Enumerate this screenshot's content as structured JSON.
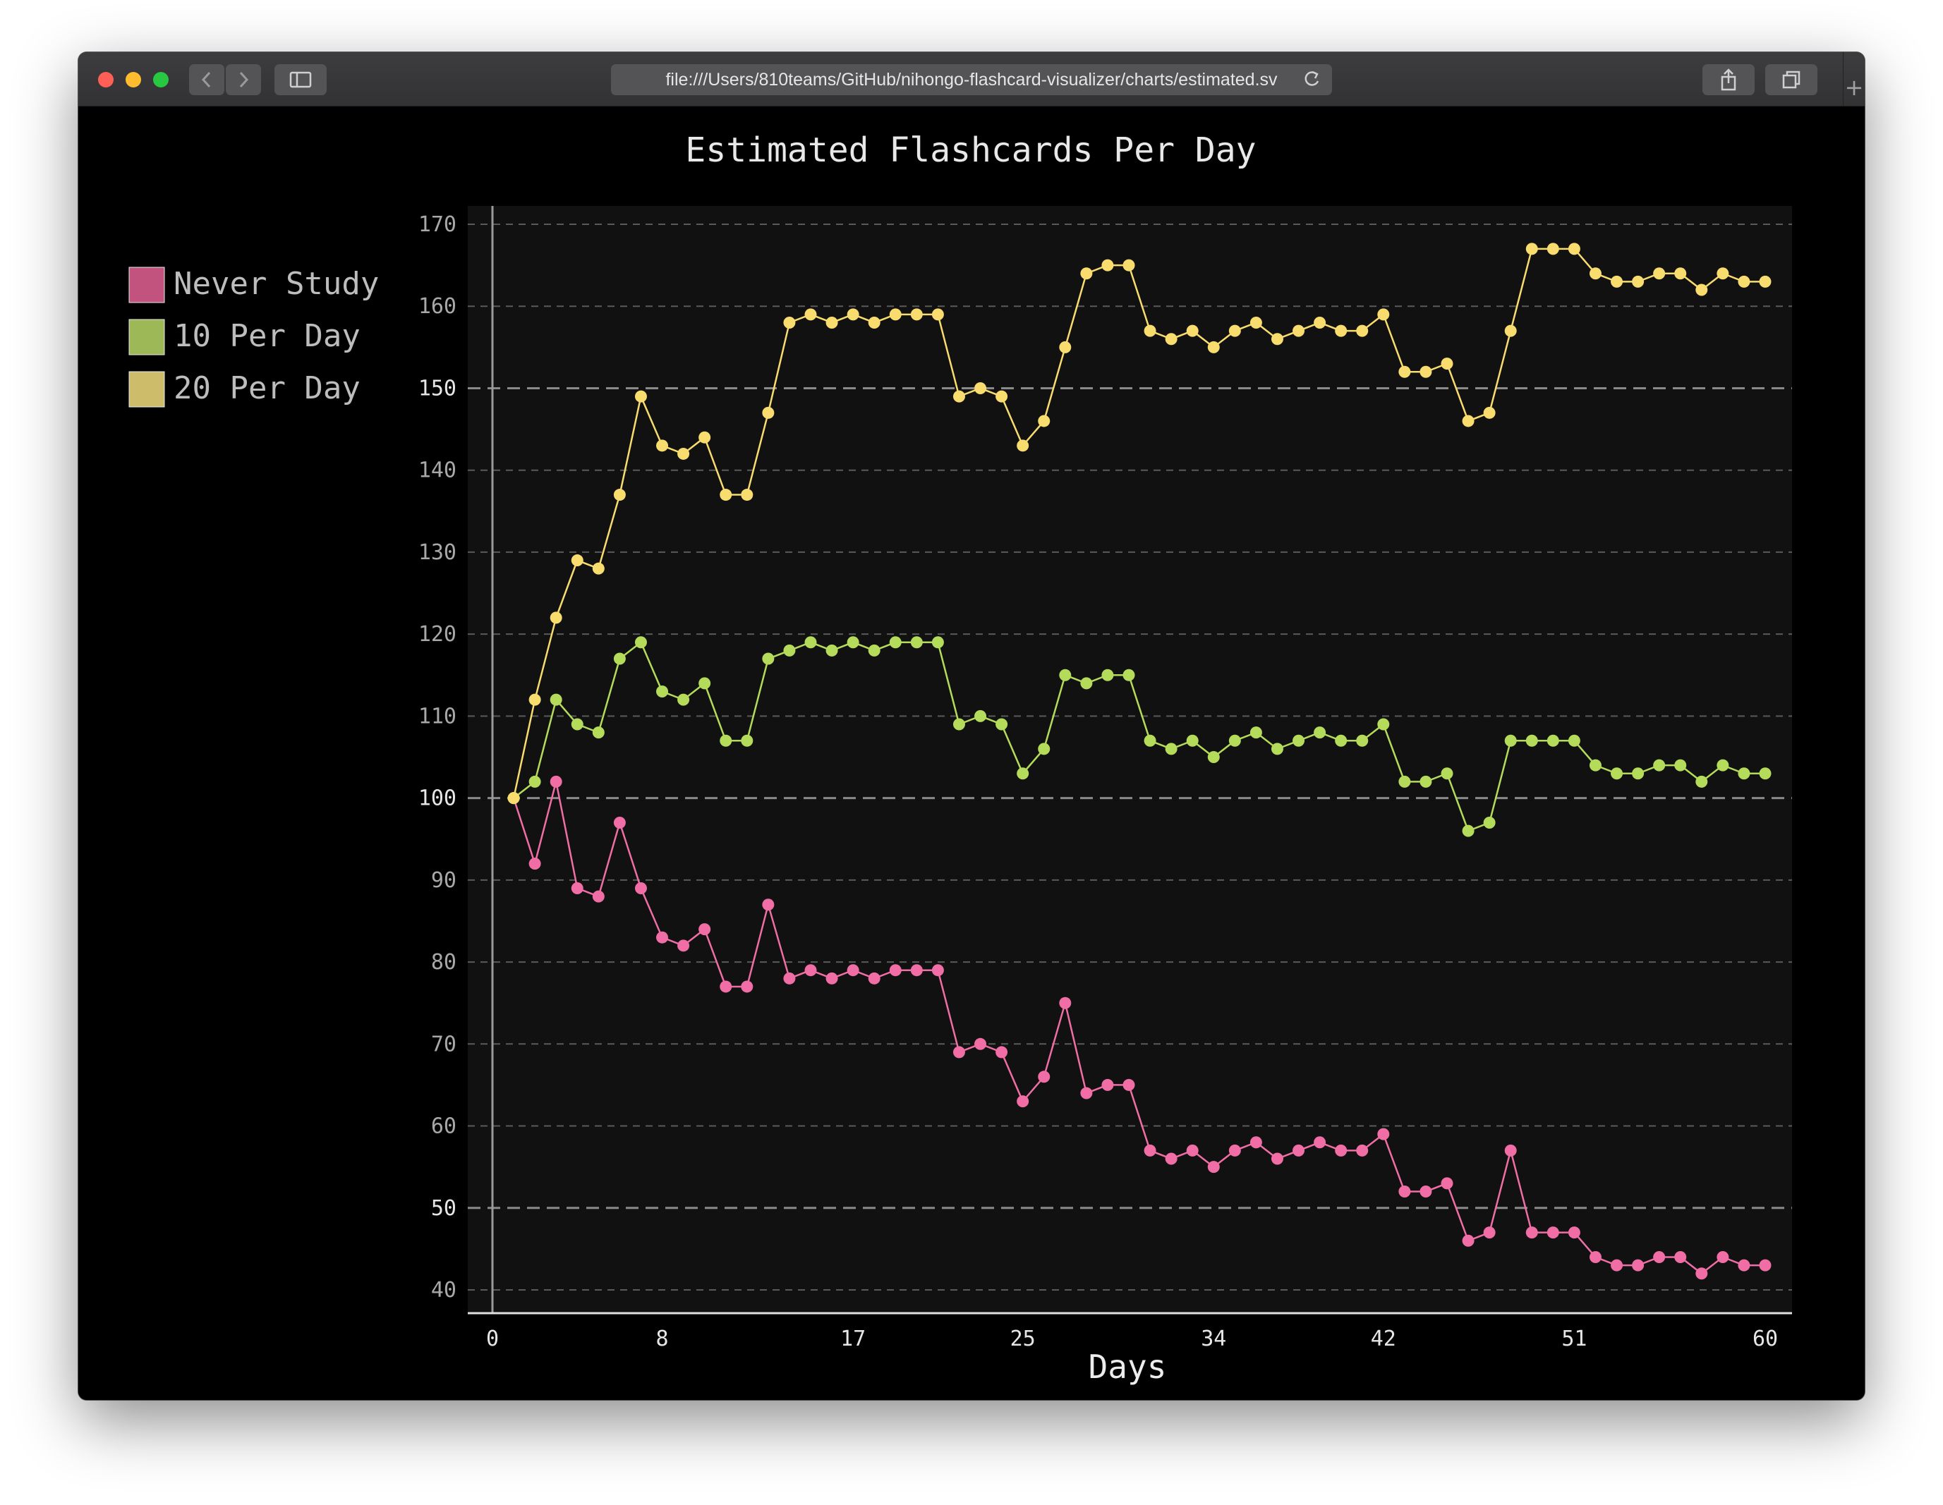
{
  "browser": {
    "url": "file:///Users/810teams/GitHub/nihongo-flashcard-visualizer/charts/estimated.sv",
    "back_icon": "chevron-left-icon",
    "forward_icon": "chevron-right-icon",
    "sidebar_icon": "sidebar-icon",
    "share_icon": "share-icon",
    "tabs_icon": "tabs-icon",
    "reload_icon": "reload-icon",
    "new_tab_icon": "plus-icon",
    "new_tab_glyph": "+"
  },
  "chart_data": {
    "type": "line",
    "title": "Estimated Flashcards Per Day",
    "xlabel": "Days",
    "ylabel": "",
    "xlim": [
      0,
      60
    ],
    "ylim": [
      40,
      170
    ],
    "x_ticks": [
      0,
      8,
      17,
      25,
      34,
      42,
      51,
      60
    ],
    "y_ticks": [
      40,
      50,
      60,
      70,
      80,
      90,
      100,
      110,
      120,
      130,
      140,
      150,
      160,
      170
    ],
    "major_y_ticks": [
      50,
      100,
      150
    ],
    "grid": "horizontal dashed",
    "legend_position": "left",
    "background": "#111111",
    "x": [
      1,
      2,
      3,
      4,
      5,
      6,
      7,
      8,
      9,
      10,
      11,
      12,
      13,
      14,
      15,
      16,
      17,
      18,
      19,
      20,
      21,
      22,
      23,
      24,
      25,
      26,
      27,
      28,
      29,
      30,
      31,
      32,
      33,
      34,
      35,
      36,
      37,
      38,
      39,
      40,
      41,
      42,
      43,
      44,
      45,
      46,
      47,
      48,
      49,
      50,
      51,
      52,
      53,
      54,
      55,
      56,
      57,
      58,
      59,
      60
    ],
    "series": [
      {
        "name": "Never Study",
        "color": "#f06ea5",
        "legend_color": "#c2537f",
        "values": [
          100,
          92,
          102,
          89,
          88,
          97,
          89,
          83,
          82,
          84,
          77,
          77,
          87,
          78,
          79,
          78,
          79,
          78,
          79,
          79,
          79,
          69,
          70,
          69,
          63,
          66,
          75,
          64,
          65,
          65,
          57,
          56,
          57,
          55,
          57,
          58,
          56,
          57,
          58,
          57,
          57,
          59,
          52,
          52,
          53,
          46,
          47,
          57,
          47,
          47,
          47,
          44,
          43,
          43,
          44,
          44,
          42,
          44,
          43,
          43
        ]
      },
      {
        "name": "10 Per Day",
        "color": "#b4dc5a",
        "legend_color": "#9cb857",
        "values": [
          100,
          102,
          112,
          109,
          108,
          117,
          119,
          113,
          112,
          114,
          107,
          107,
          117,
          118,
          119,
          118,
          119,
          118,
          119,
          119,
          119,
          109,
          110,
          109,
          103,
          106,
          115,
          114,
          115,
          115,
          107,
          106,
          107,
          105,
          107,
          108,
          106,
          107,
          108,
          107,
          107,
          109,
          102,
          102,
          103,
          96,
          97,
          107,
          107,
          107,
          107,
          104,
          103,
          103,
          104,
          104,
          102,
          104,
          103,
          103
        ]
      },
      {
        "name": "20 Per Day",
        "color": "#f8dc6e",
        "legend_color": "#cdbd6a",
        "values": [
          100,
          112,
          122,
          129,
          128,
          137,
          149,
          143,
          142,
          144,
          137,
          137,
          147,
          158,
          159,
          158,
          159,
          158,
          159,
          159,
          159,
          149,
          150,
          149,
          143,
          146,
          155,
          164,
          165,
          165,
          157,
          156,
          157,
          155,
          157,
          158,
          156,
          157,
          158,
          157,
          157,
          159,
          152,
          152,
          153,
          146,
          147,
          157,
          167,
          167,
          167,
          164,
          163,
          163,
          164,
          164,
          162,
          164,
          163,
          163
        ]
      }
    ]
  }
}
